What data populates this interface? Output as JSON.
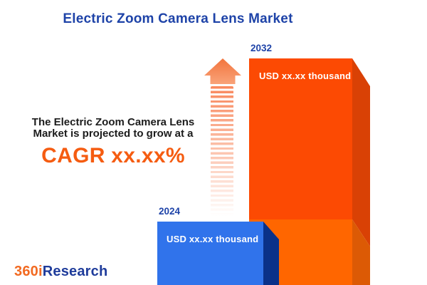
{
  "title": "Electric Zoom Camera Lens Market",
  "annotation": {
    "line1": "The Electric Zoom Camera Lens",
    "line2": "Market is projected to grow at a",
    "cagr": "CAGR xx.xx%"
  },
  "chart_data": {
    "type": "bar",
    "categories": [
      "2024",
      "2032"
    ],
    "values": [
      null,
      null
    ],
    "value_labels": [
      "USD xx.xx thousand",
      "USD xx.xx thousand"
    ],
    "title": "Electric Zoom Camera Lens Market",
    "xlabel": "",
    "ylabel": "",
    "legend": false,
    "annotations": [
      "The Electric Zoom Camera Lens Market is projected to grow at a CAGR xx.xx%"
    ],
    "layout_hints": {
      "bar_2024_color": "#3073EB",
      "bar_2024_side_color": "#0A3189",
      "bar_2032_color": "#FC4A03",
      "bar_2032_lower_segment_color": "#FF6600",
      "bar_2032_side_color": "#D94105",
      "growth_arrow": "striped, fading upward orange arrow between annotation and 2032 bar"
    }
  },
  "logo": {
    "prefix": "360i",
    "suffix": "Research"
  },
  "colors": {
    "title_blue": "#1E43A8",
    "cagr_orange": "#F55C11",
    "annotation_text": "#1C1C1C",
    "arrow_orange": "#F87B4B",
    "logo_orange": "#F26A21",
    "logo_blue": "#1F3C9B",
    "background": "#FFFFFF"
  }
}
